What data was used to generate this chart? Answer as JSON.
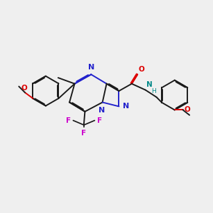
{
  "bg_color": "#efefef",
  "bond_color": "#1a1a1a",
  "n_color": "#2222cc",
  "o_color": "#dd0000",
  "f_color": "#cc00cc",
  "nh_color": "#008888",
  "lw": 1.4
}
